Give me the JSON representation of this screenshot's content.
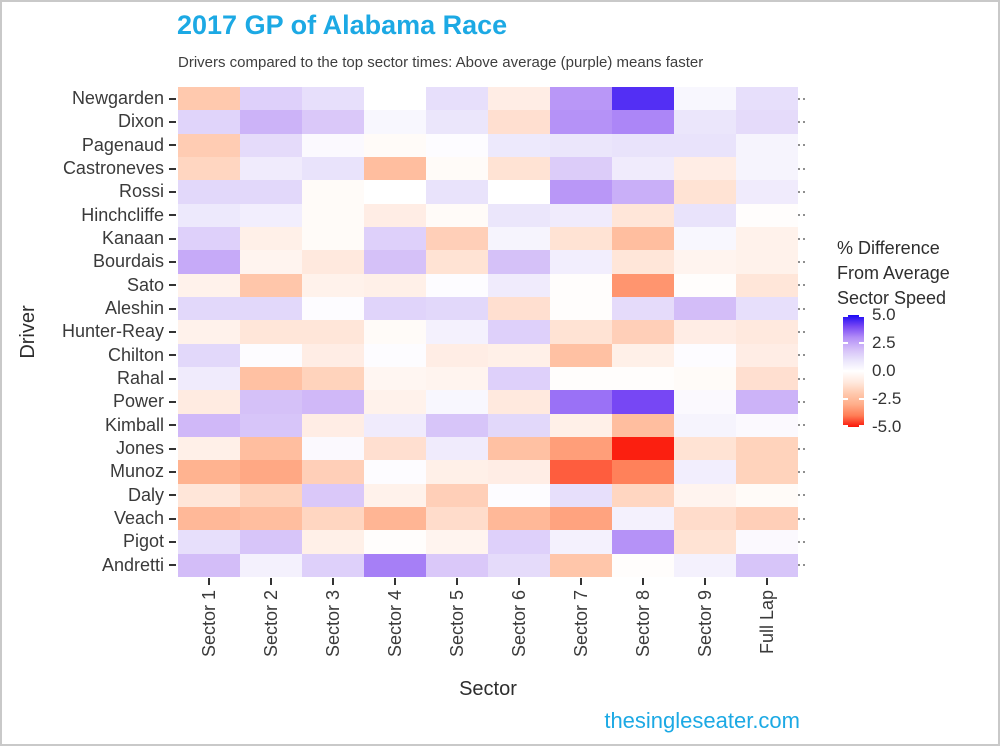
{
  "title": "2017 GP of Alabama Race",
  "subtitle": "Drivers compared to the top sector times: Above average (purple) means faster",
  "footer": "thesingleseater.com",
  "colors": {
    "title_accent": "#1ca9e4",
    "axis_text": "#3a3a3a",
    "border": "#c9c9c9",
    "legend_high": "#0000ff",
    "legend_mid": "#ffffff",
    "legend_low": "#ff0000"
  },
  "chart_data": {
    "type": "heatmap",
    "title": "2017 GP of Alabama Race",
    "subtitle": "Drivers compared to the top sector times: Above average (purple) means faster",
    "xlabel": "Sector",
    "ylabel": "Driver",
    "categories_x": [
      "Sector 1",
      "Sector 2",
      "Sector 3",
      "Sector 4",
      "Sector 5",
      "Sector 6",
      "Sector 7",
      "Sector 8",
      "Sector 9",
      "Full Lap"
    ],
    "categories_y": [
      "Newgarden",
      "Dixon",
      "Pagenaud",
      "Castroneves",
      "Rossi",
      "Hinchcliffe",
      "Kanaan",
      "Bourdais",
      "Sato",
      "Aleshin",
      "Hunter-Reay",
      "Chilton",
      "Rahal",
      "Power",
      "Kimball",
      "Jones",
      "Munoz",
      "Daly",
      "Veach",
      "Pigot",
      "Andretti"
    ],
    "values": [
      [
        -2.0,
        1.5,
        1.1,
        0.0,
        1.1,
        -0.8,
        2.8,
        4.4,
        0.3,
        1.1
      ],
      [
        1.4,
        2.2,
        1.7,
        0.3,
        0.9,
        -1.3,
        2.9,
        3.1,
        0.9,
        1.2
      ],
      [
        -1.9,
        1.2,
        0.2,
        -0.2,
        0.1,
        0.8,
        0.9,
        1.0,
        1.0,
        0.4
      ],
      [
        -1.6,
        0.7,
        1.0,
        -2.4,
        -0.2,
        -1.2,
        1.6,
        0.7,
        -0.8,
        0.4
      ],
      [
        1.3,
        1.3,
        -0.2,
        0.0,
        1.0,
        0.0,
        2.8,
        2.3,
        -1.2,
        0.7
      ],
      [
        0.8,
        0.6,
        -0.2,
        -0.8,
        -0.2,
        0.9,
        0.7,
        -1.1,
        1.0,
        -0.1
      ],
      [
        1.5,
        -0.7,
        -0.2,
        1.5,
        -1.8,
        0.4,
        -1.2,
        -2.4,
        0.3,
        -0.6
      ],
      [
        2.4,
        -0.5,
        -1.0,
        1.9,
        -1.2,
        1.9,
        0.6,
        -1.1,
        -0.5,
        -0.6
      ],
      [
        -0.6,
        -2.1,
        -0.6,
        -0.7,
        0.1,
        0.7,
        -0.1,
        -3.5,
        -0.1,
        -1.1
      ],
      [
        1.3,
        1.3,
        0.1,
        1.4,
        1.3,
        -1.3,
        -0.1,
        1.2,
        2.0,
        1.1
      ],
      [
        -0.6,
        -1.1,
        -1.1,
        -0.2,
        0.5,
        1.5,
        -1.2,
        -1.8,
        -0.8,
        -1.0
      ],
      [
        1.3,
        0.1,
        -0.8,
        0.1,
        -0.8,
        -0.7,
        -2.3,
        -0.7,
        0.1,
        -0.8
      ],
      [
        0.7,
        -2.3,
        -1.7,
        -0.4,
        -0.5,
        1.5,
        -0.1,
        -0.1,
        -0.2,
        -1.3
      ],
      [
        -0.9,
        1.9,
        2.1,
        -0.6,
        0.3,
        -1.0,
        3.4,
        4.0,
        0.2,
        2.2
      ],
      [
        2.1,
        1.8,
        -0.8,
        0.7,
        1.8,
        1.3,
        -0.7,
        -2.4,
        0.4,
        0.2
      ],
      [
        -0.7,
        -2.4,
        0.2,
        -1.3,
        0.7,
        -2.3,
        -3.3,
        -4.9,
        -1.2,
        -1.7
      ],
      [
        -2.8,
        -3.1,
        -1.8,
        0.1,
        -0.7,
        -0.8,
        -4.3,
        -3.9,
        0.6,
        -1.7
      ],
      [
        -1.1,
        -1.7,
        1.7,
        -0.6,
        -1.8,
        0.1,
        1.1,
        -1.6,
        -0.5,
        -0.2
      ],
      [
        -2.6,
        -2.4,
        -1.6,
        -2.7,
        -1.4,
        -2.6,
        -3.2,
        0.5,
        -1.4,
        -1.8
      ],
      [
        1.1,
        1.8,
        -0.7,
        -0.1,
        -0.5,
        1.5,
        0.5,
        2.9,
        -1.2,
        0.2
      ],
      [
        2.0,
        0.5,
        1.5,
        3.2,
        1.7,
        1.2,
        -2.1,
        -0.1,
        0.5,
        1.8
      ]
    ],
    "value_range": [
      -5,
      5
    ],
    "color_stops": [
      [
        -5,
        "#fa1508"
      ],
      [
        -4,
        "#ff7c55"
      ],
      [
        -3,
        "#ffad89"
      ],
      [
        -2,
        "#ffc9ae"
      ],
      [
        -1,
        "#ffe9de"
      ],
      [
        0,
        "#ffffff"
      ],
      [
        1,
        "#e9e3fb"
      ],
      [
        2,
        "#d3bdf8"
      ],
      [
        3,
        "#b28df7"
      ],
      [
        4,
        "#7747f4"
      ],
      [
        5,
        "#1c0af5"
      ]
    ],
    "legend": {
      "title": "% Difference\nFrom Average\nSector Speed",
      "ticks": [
        "5.0",
        "2.5",
        "0.0",
        "-2.5",
        "-5.0"
      ],
      "tick_values": [
        5.0,
        2.5,
        0.0,
        -2.5,
        -5.0
      ],
      "position": "right",
      "grid": false
    }
  }
}
